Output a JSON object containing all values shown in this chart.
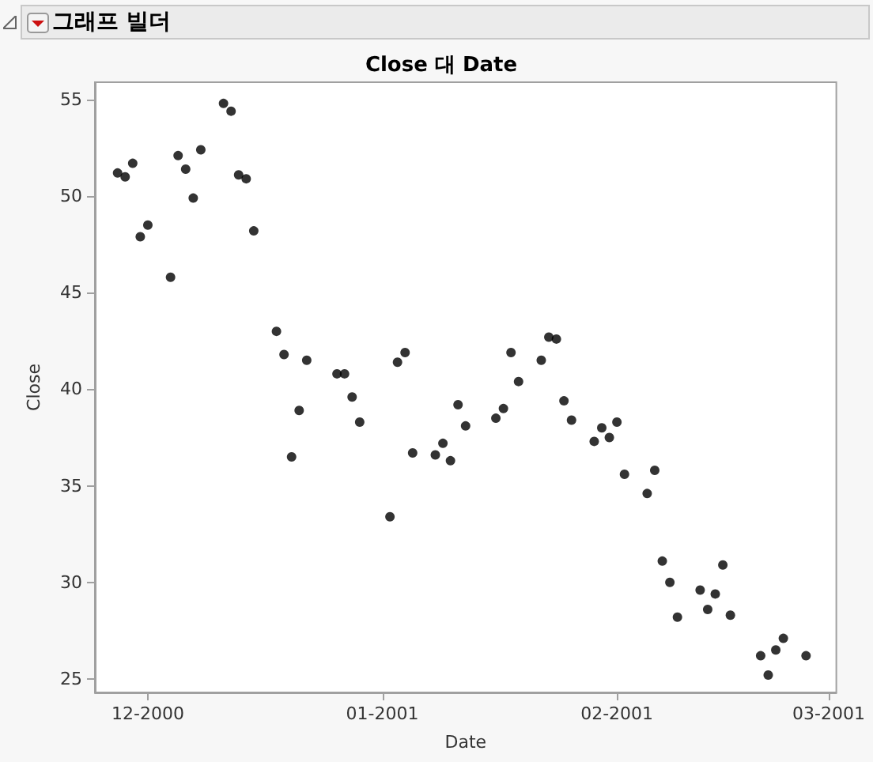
{
  "chart_data": {
    "type": "scatter",
    "title": "Close 대 Date",
    "xlabel": "Date",
    "ylabel": "Close",
    "annotations": [
      "그래프 빌더"
    ],
    "x": [
      "2000-11-27",
      "2000-11-28",
      "2000-11-29",
      "2000-11-30",
      "2000-12-01",
      "2000-12-04",
      "2000-12-05",
      "2000-12-06",
      "2000-12-07",
      "2000-12-08",
      "2000-12-11",
      "2000-12-12",
      "2000-12-13",
      "2000-12-14",
      "2000-12-15",
      "2000-12-18",
      "2000-12-19",
      "2000-12-20",
      "2000-12-21",
      "2000-12-22",
      "2000-12-26",
      "2000-12-27",
      "2000-12-28",
      "2000-12-29",
      "2001-01-02",
      "2001-01-03",
      "2001-01-04",
      "2001-01-05",
      "2001-01-08",
      "2001-01-09",
      "2001-01-10",
      "2001-01-11",
      "2001-01-12",
      "2001-01-16",
      "2001-01-17",
      "2001-01-18",
      "2001-01-19",
      "2001-01-22",
      "2001-01-23",
      "2001-01-24",
      "2001-01-25",
      "2001-01-26",
      "2001-01-29",
      "2001-01-30",
      "2001-01-31",
      "2001-02-01",
      "2001-02-02",
      "2001-02-05",
      "2001-02-06",
      "2001-02-07",
      "2001-02-08",
      "2001-02-09",
      "2001-02-12",
      "2001-02-13",
      "2001-02-14",
      "2001-02-15",
      "2001-02-16",
      "2001-02-20",
      "2001-02-21",
      "2001-02-22",
      "2001-02-23",
      "2001-02-26"
    ],
    "values": [
      51.2,
      51.0,
      51.7,
      47.9,
      48.5,
      45.8,
      52.1,
      51.4,
      49.9,
      52.4,
      54.8,
      54.4,
      51.1,
      50.9,
      48.2,
      43.0,
      41.8,
      36.5,
      38.9,
      41.5,
      40.8,
      40.8,
      39.6,
      38.3,
      33.4,
      41.4,
      41.9,
      36.7,
      36.6,
      37.2,
      36.3,
      39.2,
      38.1,
      38.5,
      39.0,
      41.9,
      40.4,
      41.5,
      42.7,
      42.6,
      39.4,
      38.4,
      37.3,
      38.0,
      37.5,
      38.3,
      35.6,
      34.6,
      35.8,
      31.1,
      30.0,
      28.2,
      29.6,
      28.6,
      29.4,
      30.9,
      28.3,
      26.2,
      25.2,
      26.5,
      27.1,
      26.2
    ],
    "color": "#000000",
    "marker": "circle",
    "xlim": [
      "2000-11-24",
      "2001-03-02"
    ],
    "xticks": [
      {
        "value": "2000-12-01",
        "label": "12-2000"
      },
      {
        "value": "2001-01-01",
        "label": "01-2001"
      },
      {
        "value": "2001-02-01",
        "label": "02-2001"
      },
      {
        "value": "2001-03-01",
        "label": "03-2001"
      }
    ],
    "ylim": [
      24.3,
      55.9
    ],
    "yticks": [
      25,
      30,
      35,
      40,
      45,
      50,
      55
    ],
    "grid": false
  }
}
